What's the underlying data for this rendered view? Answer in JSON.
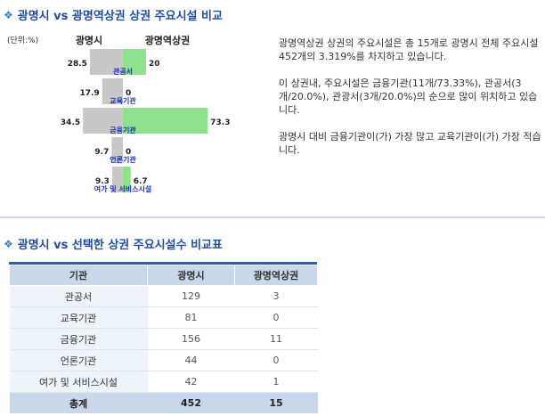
{
  "section1": {
    "title": "광명시 vs 광명역상권 상권 주요시설 비교"
  },
  "section2": {
    "title": "광명시 vs 선택한 상권 주요시설수 비교표"
  },
  "chart_data": {
    "type": "bar",
    "unit_label": "(단위:%)",
    "series": [
      {
        "name": "광명시",
        "values": [
          28.5,
          17.9,
          34.5,
          9.7,
          9.3
        ],
        "color": "#c8c8c8"
      },
      {
        "name": "광명역상권",
        "values": [
          20,
          0,
          73.3,
          0,
          6.7
        ],
        "color": "#8fe08f"
      }
    ],
    "categories": [
      "관공서",
      "교육기관",
      "금융기관",
      "언론기관",
      "여가 및 서비스시설"
    ],
    "value_labels": {
      "left": [
        "28.5",
        "17.9",
        "34.5",
        "9.7",
        "9.3"
      ],
      "right": [
        "20",
        "0",
        "73.3",
        "0",
        "6.7"
      ]
    }
  },
  "summary": {
    "paragraphs": [
      "광명역상권 상권의 주요시설은 총 15개로 광명시 전체 주요시설 452개의 3.319%를 차지하고 있습니다.",
      "이 상권내, 주요시설은 금융기관(11개/73.33%), 관공서(3개/20.0%), 관광서(3개/20.0%)의 순으로 많이 위치하고 있습니다.",
      "광명시 대비 금융기관이(가) 가장 많고 교육기관이(가) 가장 적습니다."
    ]
  },
  "table": {
    "headers": [
      "기관",
      "광명시",
      "광명역상권"
    ],
    "rows": [
      {
        "name": "관공서",
        "city": "129",
        "area": "3"
      },
      {
        "name": "교육기관",
        "city": "81",
        "area": "0"
      },
      {
        "name": "금융기관",
        "city": "156",
        "area": "11"
      },
      {
        "name": "언론기관",
        "city": "44",
        "area": "0"
      },
      {
        "name": "여가 및 서비스시설",
        "city": "42",
        "area": "1"
      }
    ],
    "total": {
      "name": "총계",
      "city": "452",
      "area": "15"
    }
  }
}
